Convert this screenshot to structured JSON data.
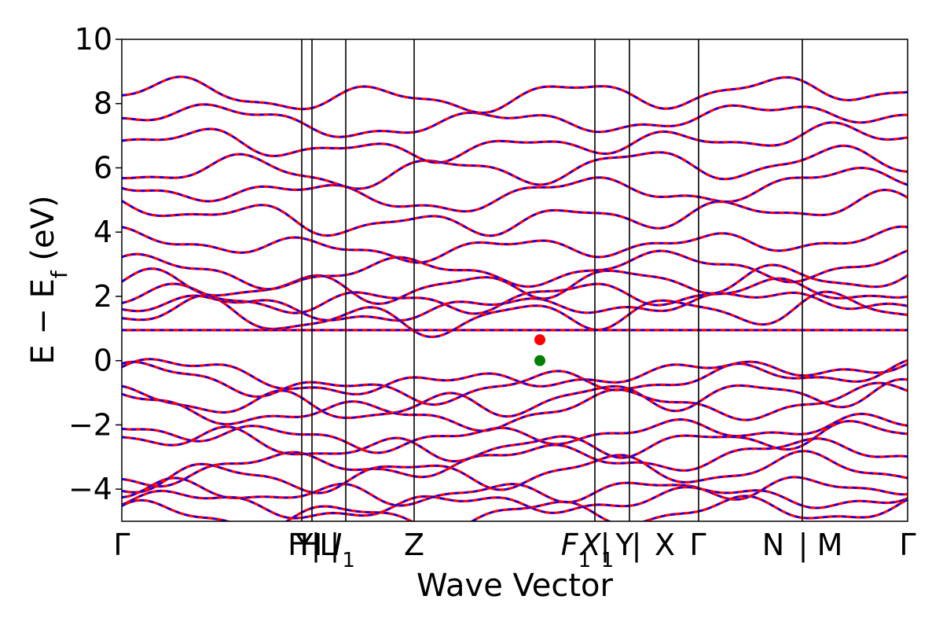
{
  "chart_data": {
    "type": "line",
    "title": "",
    "xlabel": "Wave Vector",
    "ylabel_main": "E − E",
    "ylabel_sub": "f",
    "ylabel_unit": " (eV)",
    "ylim": [
      -5,
      10
    ],
    "yticks": [
      "−4",
      "−2",
      "0",
      "2",
      "4",
      "6",
      "8",
      "10"
    ],
    "ytick_values": [
      -4,
      -2,
      0,
      2,
      4,
      6,
      8,
      10
    ],
    "xlim": [
      0,
      1
    ],
    "grid": false,
    "legend": "none",
    "kpath": [
      {
        "label": "Γ",
        "x": 0.0
      },
      {
        "label": "F",
        "x": 0.222
      },
      {
        "label": "Y",
        "x": 0.232
      },
      {
        "label": "H",
        "x": 0.241
      },
      {
        "label": "|",
        "x": 0.247
      },
      {
        "label": "L",
        "x": 0.262
      },
      {
        "label": "|",
        "x": 0.271
      },
      {
        "label": "I",
        "sub": "1",
        "x": 0.283,
        "italic": true
      },
      {
        "label": "Z",
        "x": 0.372
      },
      {
        "label": "F",
        "sub": "1",
        "x": 0.578,
        "italic": true
      },
      {
        "label": "X",
        "sub": "1",
        "x": 0.605,
        "italic": true
      },
      {
        "label": "|",
        "x": 0.615
      },
      {
        "label": "Y",
        "x": 0.64
      },
      {
        "label": "|",
        "x": 0.655
      },
      {
        "label": "X",
        "x": 0.691
      },
      {
        "label": "Γ",
        "x": 0.733
      },
      {
        "label": "N",
        "x": 0.829
      },
      {
        "label": "|",
        "x": 0.867
      },
      {
        "label": "M",
        "x": 0.901
      },
      {
        "label": "Γ",
        "x": 1.0
      }
    ],
    "vlines": [
      0.229,
      0.242,
      0.285,
      0.372,
      0.602,
      0.646,
      0.734,
      0.866
    ],
    "markers": [
      {
        "name": "cbm",
        "x": 0.532,
        "y": 0.65,
        "color": "#ff0000"
      },
      {
        "name": "vbm",
        "x": 0.532,
        "y": 0.0,
        "color": "#008000"
      }
    ],
    "flat_band": {
      "y": 0.95
    },
    "gap_ref": {
      "vbm": 0.0,
      "cbm": 0.65
    },
    "series": [
      {
        "style": "spin-up solid",
        "color": "#ff0000"
      },
      {
        "style": "spin-down dashed",
        "color": "#0000ff"
      }
    ],
    "valence_bands": [
      [
        -0.2,
        -0.8,
        -0.4,
        -0.1
      ],
      [
        -0.4,
        -1.0,
        -0.6,
        -0.3
      ],
      [
        -1.2,
        -1.5,
        -1.1,
        -1.0
      ],
      [
        -1.3,
        -1.8,
        -1.4,
        -1.2
      ],
      [
        -2.1,
        -2.5,
        -2.2,
        -2.0
      ],
      [
        -2.3,
        -2.8,
        -2.6,
        -2.2
      ],
      [
        -3.5,
        -3.2,
        -3.0,
        -2.8
      ],
      [
        -3.7,
        -3.6,
        -3.4,
        -3.3
      ],
      [
        -4.0,
        -4.2,
        -4.0,
        -3.9
      ],
      [
        -4.4,
        -4.6,
        -4.3,
        -4.2
      ],
      [
        -4.8,
        -4.9,
        -4.7,
        -4.6
      ]
    ],
    "conduction_bands": [
      [
        1.6,
        1.2,
        1.5,
        1.7
      ],
      [
        1.8,
        1.5,
        1.8,
        1.9
      ],
      [
        2.0,
        1.8,
        2.1,
        2.2
      ],
      [
        2.4,
        2.2,
        2.5,
        2.6
      ],
      [
        2.8,
        2.7,
        2.9,
        3.0
      ],
      [
        3.8,
        3.4,
        3.6,
        3.8
      ],
      [
        4.8,
        4.2,
        4.5,
        4.9
      ],
      [
        5.5,
        5.0,
        5.3,
        5.6
      ],
      [
        6.0,
        5.8,
        6.1,
        6.2
      ],
      [
        7.0,
        6.5,
        6.8,
        7.1
      ],
      [
        7.7,
        7.3,
        7.5,
        7.8
      ],
      [
        8.4,
        8.1,
        8.3,
        8.5
      ]
    ]
  }
}
